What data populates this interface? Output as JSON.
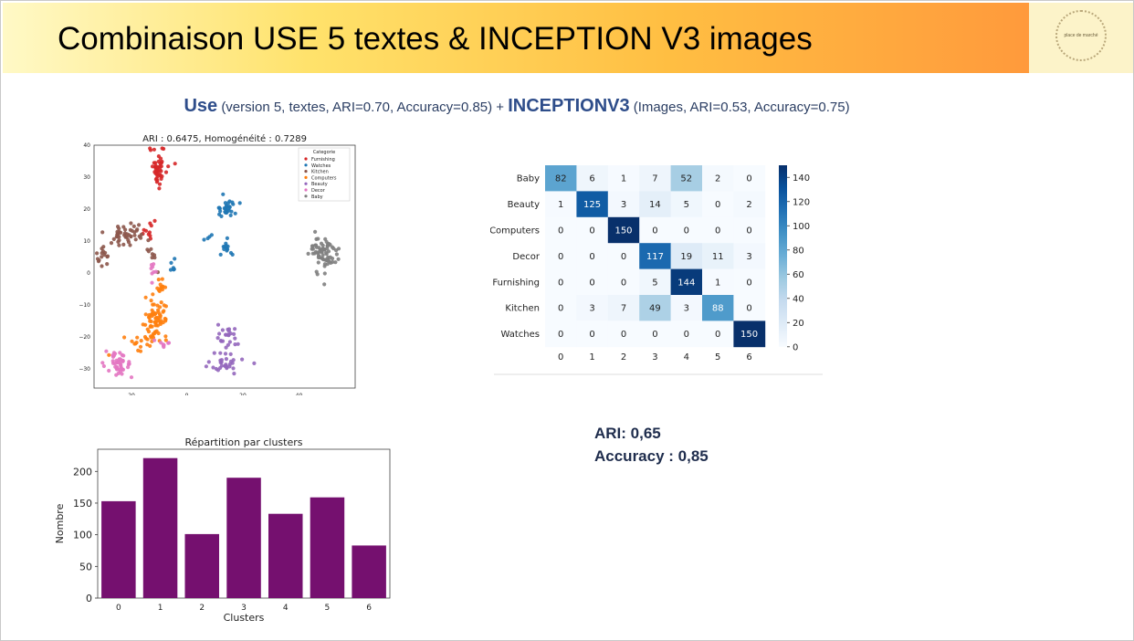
{
  "slide": {
    "title": "Combinaison USE 5 textes & INCEPTION V3 images",
    "logo_text": "place de marché",
    "subtitle": {
      "part1_bold": "Use",
      "part1_detail": "(version 5, textes, ARI=0.70, Accuracy=0.85) +",
      "part2_bold": "INCEPTIONV3",
      "part2_detail": "(Images, ARI=0.53, Accuracy=0.75)"
    },
    "metrics": {
      "ari": "ARI: 0,65",
      "accuracy": "Accuracy : 0,85"
    }
  },
  "chart_data": [
    {
      "type": "scatter",
      "title": "ARI : 0.6475, Homogénéité : 0.7289",
      "xlim": [
        -33,
        60
      ],
      "ylim": [
        -36,
        40
      ],
      "x_ticks": [
        -20,
        0,
        20,
        40
      ],
      "y_ticks": [
        40,
        30,
        20,
        10,
        0,
        -10,
        -20,
        -30
      ],
      "x_tick_labels": [
        "-20",
        "0",
        "20",
        "40"
      ],
      "y_tick_labels": [
        "40",
        "30",
        "20",
        "10",
        "0",
        "−10",
        "−20",
        "−30"
      ],
      "legend": {
        "title": "Categorie",
        "placement": "top-right",
        "entries": [
          "Furnishing",
          "Watches",
          "Kitchen",
          "Computers",
          "Beauty",
          "Decor",
          "Baby"
        ],
        "colors": [
          "#d62728",
          "#1f77b4",
          "#8c564b",
          "#ff7f0e",
          "#9467bd",
          "#e377c2",
          "#7f7f7f"
        ]
      },
      "clusters": [
        {
          "category": "Furnishing",
          "center": [
            -10,
            33
          ],
          "spread": [
            1.5,
            3.2
          ],
          "count": 45
        },
        {
          "category": "Furnishing",
          "center": [
            -14,
            13
          ],
          "spread": [
            1.5,
            1.5
          ],
          "count": 10
        },
        {
          "category": "Watches",
          "center": [
            14,
            20
          ],
          "spread": [
            2,
            1.4
          ],
          "count": 30
        },
        {
          "category": "Watches",
          "center": [
            14,
            8
          ],
          "spread": [
            1,
            1.5
          ],
          "count": 14
        },
        {
          "category": "Watches",
          "center": [
            -5,
            2
          ],
          "spread": [
            0.8,
            1.2
          ],
          "count": 6
        },
        {
          "category": "Watches",
          "center": [
            7,
            11
          ],
          "spread": [
            1,
            0.5
          ],
          "count": 4
        },
        {
          "category": "Kitchen",
          "center": [
            -21,
            12
          ],
          "spread": [
            4,
            2
          ],
          "count": 45
        },
        {
          "category": "Kitchen",
          "center": [
            -30,
            5
          ],
          "spread": [
            1.3,
            1.8
          ],
          "count": 15
        },
        {
          "category": "Kitchen",
          "center": [
            -12,
            5
          ],
          "spread": [
            1,
            2
          ],
          "count": 8
        },
        {
          "category": "Computers",
          "center": [
            -11,
            -14
          ],
          "spread": [
            2,
            3
          ],
          "count": 70
        },
        {
          "category": "Computers",
          "center": [
            -9,
            -5
          ],
          "spread": [
            0.8,
            2.5
          ],
          "count": 12
        },
        {
          "category": "Computers",
          "center": [
            -17,
            -22
          ],
          "spread": [
            2.5,
            1.5
          ],
          "count": 15
        },
        {
          "category": "Beauty",
          "center": [
            15,
            -20
          ],
          "spread": [
            2,
            2
          ],
          "count": 25
        },
        {
          "category": "Beauty",
          "center": [
            13,
            -28
          ],
          "spread": [
            3.5,
            1.5
          ],
          "count": 30
        },
        {
          "category": "Decor",
          "center": [
            -24,
            -29
          ],
          "spread": [
            2.5,
            2
          ],
          "count": 45
        },
        {
          "category": "Decor",
          "center": [
            -8,
            -22
          ],
          "spread": [
            2,
            0.6
          ],
          "count": 8
        },
        {
          "category": "Decor",
          "center": [
            -12,
            1
          ],
          "spread": [
            1.5,
            1
          ],
          "count": 8
        },
        {
          "category": "Baby",
          "center": [
            49,
            6
          ],
          "spread": [
            2.5,
            3
          ],
          "count": 75
        }
      ]
    },
    {
      "type": "heatmap",
      "rows": [
        "Baby",
        "Beauty",
        "Computers",
        "Decor",
        "Furnishing",
        "Kitchen",
        "Watches"
      ],
      "cols": [
        "0",
        "1",
        "2",
        "3",
        "4",
        "5",
        "6"
      ],
      "values": [
        [
          82,
          6,
          1,
          7,
          52,
          2,
          0
        ],
        [
          1,
          125,
          3,
          14,
          5,
          0,
          2
        ],
        [
          0,
          0,
          150,
          0,
          0,
          0,
          0
        ],
        [
          0,
          0,
          0,
          117,
          19,
          11,
          3
        ],
        [
          0,
          0,
          0,
          5,
          144,
          1,
          0
        ],
        [
          0,
          3,
          7,
          49,
          3,
          88,
          0
        ],
        [
          0,
          0,
          0,
          0,
          0,
          0,
          150
        ]
      ],
      "colorbar": {
        "min": 0,
        "max": 150,
        "ticks": [
          0,
          20,
          40,
          60,
          80,
          100,
          120,
          140
        ],
        "colormap": "Blues"
      }
    },
    {
      "type": "bar",
      "title": "Répartition par clusters",
      "xlabel": "Clusters",
      "ylabel": "Nombre",
      "categories": [
        "0",
        "1",
        "2",
        "3",
        "4",
        "5",
        "6"
      ],
      "values": [
        153,
        221,
        101,
        190,
        133,
        159,
        83
      ],
      "ylim": [
        0,
        235
      ],
      "y_ticks": [
        0,
        50,
        100,
        150,
        200
      ],
      "color": "#75106f"
    }
  ]
}
